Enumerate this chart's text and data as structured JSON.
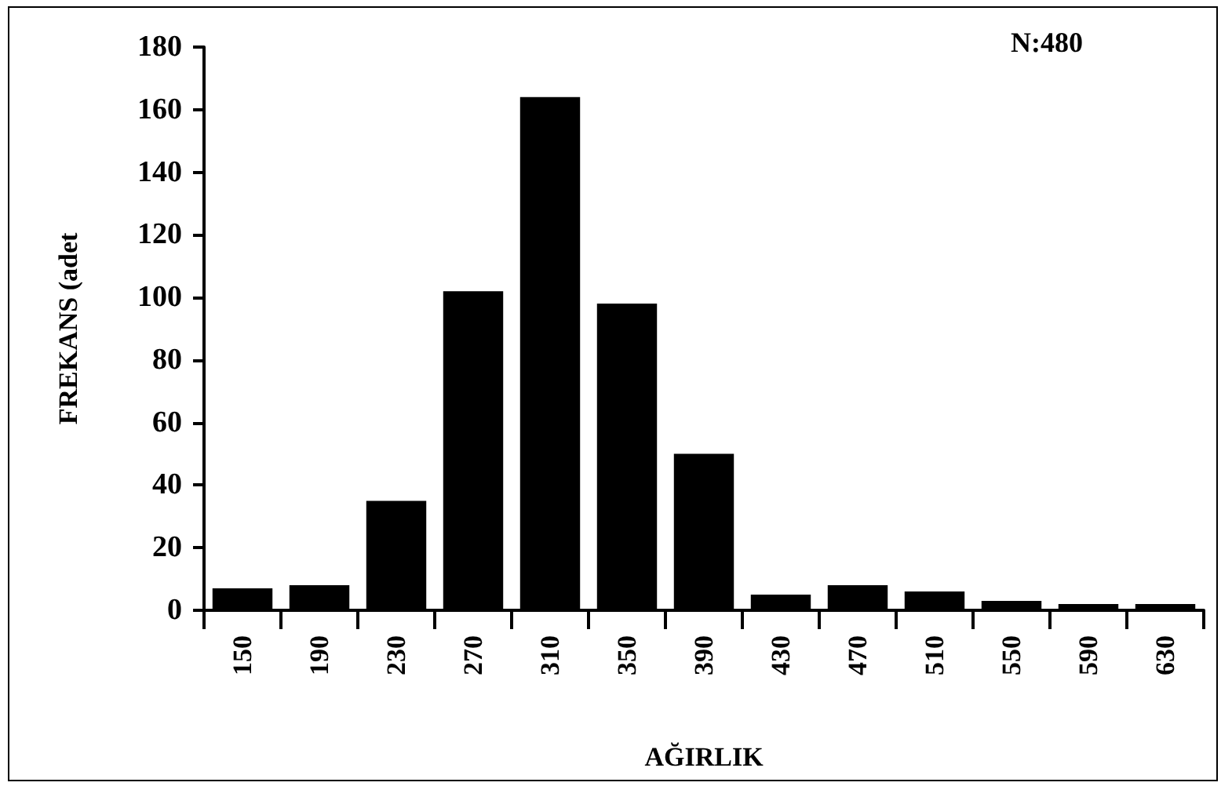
{
  "chart_data": {
    "type": "bar",
    "xlabel": "AĞIRLIK",
    "ylabel": "FREKANS (adet",
    "annotations": [
      "N:480"
    ],
    "categories": [
      "150",
      "190",
      "230",
      "270",
      "310",
      "350",
      "390",
      "430",
      "470",
      "510",
      "550",
      "590",
      "630"
    ],
    "values": [
      7,
      8,
      35,
      102,
      164,
      98,
      50,
      5,
      8,
      6,
      3,
      2,
      2
    ],
    "color": "#000000",
    "ylim": [
      0,
      180
    ],
    "yticks": [
      0,
      20,
      40,
      60,
      80,
      100,
      120,
      140,
      160,
      180
    ],
    "grid": false
  }
}
